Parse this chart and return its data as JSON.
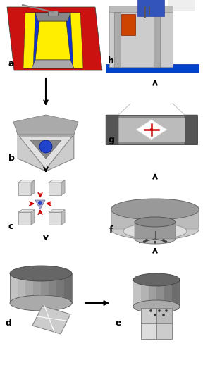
{
  "fig_bg": "#ffffff",
  "label_a": "a",
  "label_b": "b",
  "label_c": "c",
  "label_d": "d",
  "label_e": "e",
  "label_f": "f",
  "label_g": "g",
  "label_h": "h"
}
